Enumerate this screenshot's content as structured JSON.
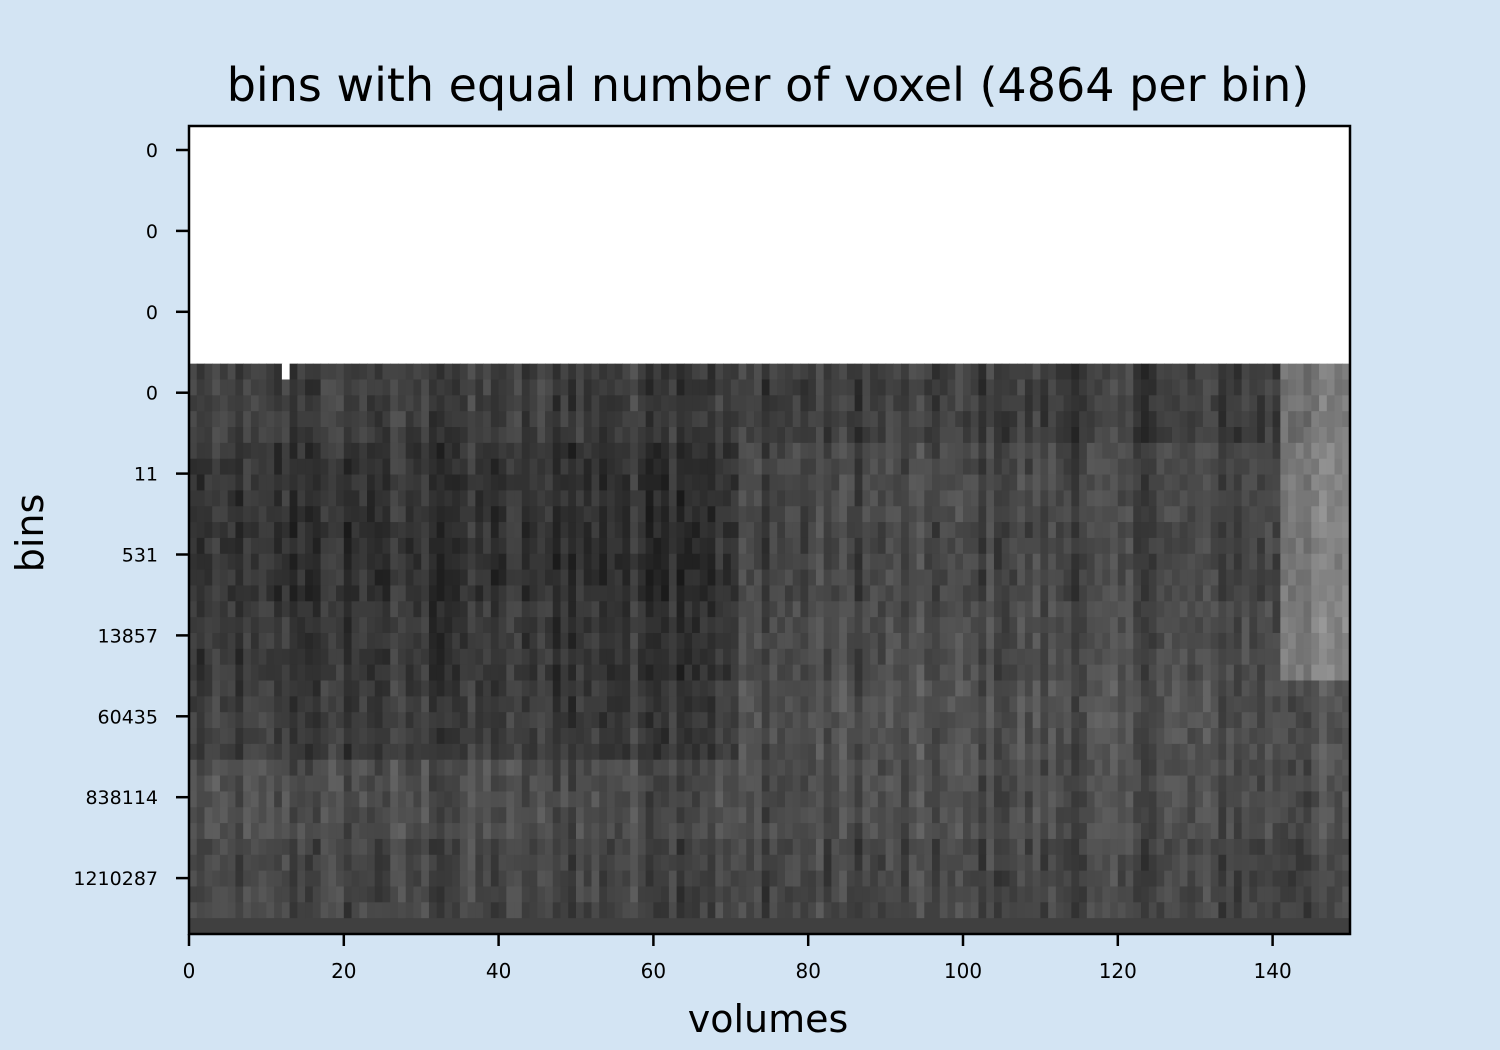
{
  "chart_data": {
    "type": "heatmap",
    "title": "bins with equal number of voxel (4864 per bin)",
    "xlabel": "volumes",
    "ylabel": "bins",
    "x_ticks": [
      0,
      20,
      40,
      60,
      80,
      100,
      120,
      140
    ],
    "xlim": [
      0,
      150
    ],
    "y_tick_labels": [
      "0",
      "0",
      "0",
      "0",
      "11",
      "531",
      "13857",
      "60435",
      "838114",
      "1210287"
    ],
    "colormap": "gray",
    "grid": false,
    "legend": "none",
    "n_volumes": 150,
    "bin_rows": [
      {
        "bin": "0",
        "level": 1.0
      },
      {
        "bin": "0",
        "level": 1.0
      },
      {
        "bin": "0",
        "level": 1.0
      },
      {
        "bin": "0",
        "level": 0.24
      },
      {
        "bin": "11",
        "level": 0.2
      },
      {
        "bin": "531",
        "level": 0.19
      },
      {
        "bin": "13857",
        "level": 0.21
      },
      {
        "bin": "60435",
        "level": 0.23
      },
      {
        "bin": "838114",
        "level": 0.3
      },
      {
        "bin": "1210287",
        "level": 0.27
      }
    ]
  }
}
